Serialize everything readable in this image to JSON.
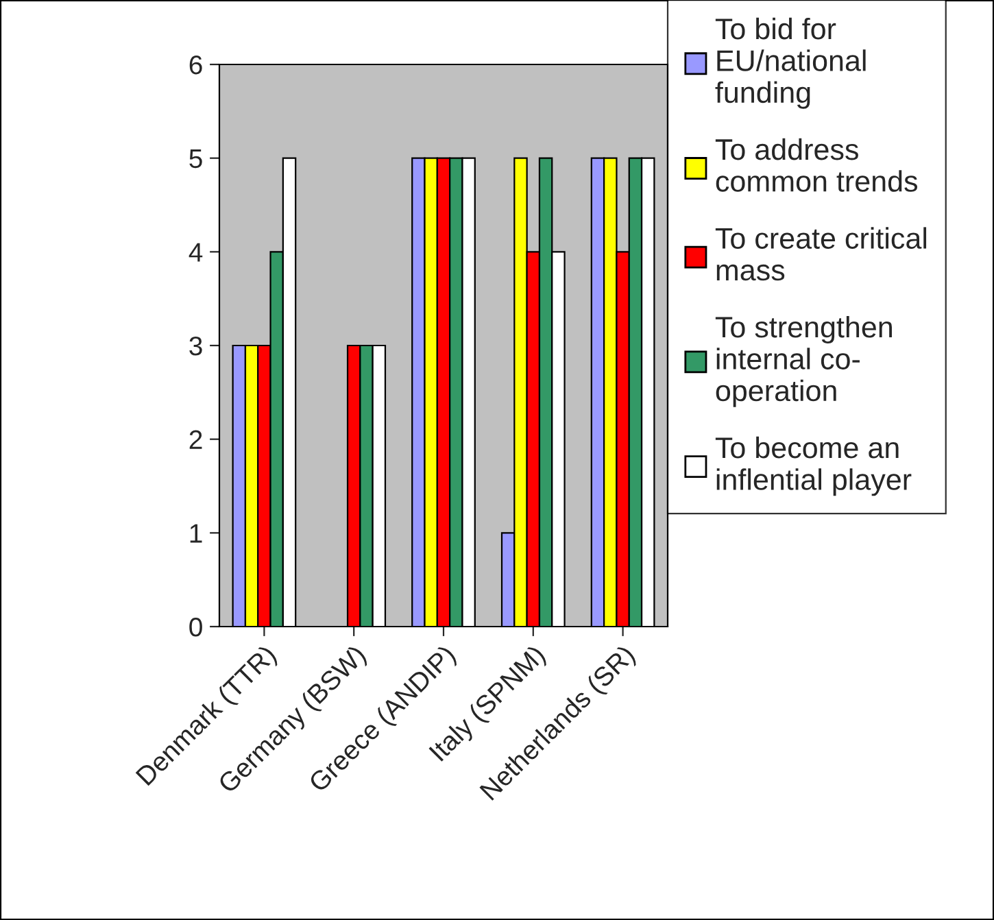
{
  "chart_data": {
    "type": "bar",
    "categories": [
      "Denmark (TTR)",
      "Germany (BSW)",
      "Greece (ANDIP)",
      "Italy (SPNM)",
      "Netherlands (SR)"
    ],
    "series": [
      {
        "name": "To bid for\nEU/national\nfunding",
        "color": "#9999ff",
        "values": [
          3,
          null,
          5,
          1,
          5
        ]
      },
      {
        "name": "To address\ncommon trends",
        "color": "#ffff00",
        "values": [
          3,
          null,
          5,
          5,
          5
        ]
      },
      {
        "name": "To create critical\nmass",
        "color": "#ff0000",
        "values": [
          3,
          3,
          5,
          4,
          4
        ]
      },
      {
        "name": "To strengthen\ninternal co-\noperation",
        "color": "#339966",
        "values": [
          4,
          3,
          5,
          5,
          5
        ]
      },
      {
        "name": "To become an\ninflential player",
        "color": "#ffffff",
        "values": [
          5,
          3,
          5,
          4,
          5
        ]
      }
    ],
    "ylim": [
      0,
      6
    ],
    "yticks": [
      0,
      1,
      2,
      3,
      4,
      5,
      6
    ],
    "grid": false,
    "legend": "right"
  }
}
